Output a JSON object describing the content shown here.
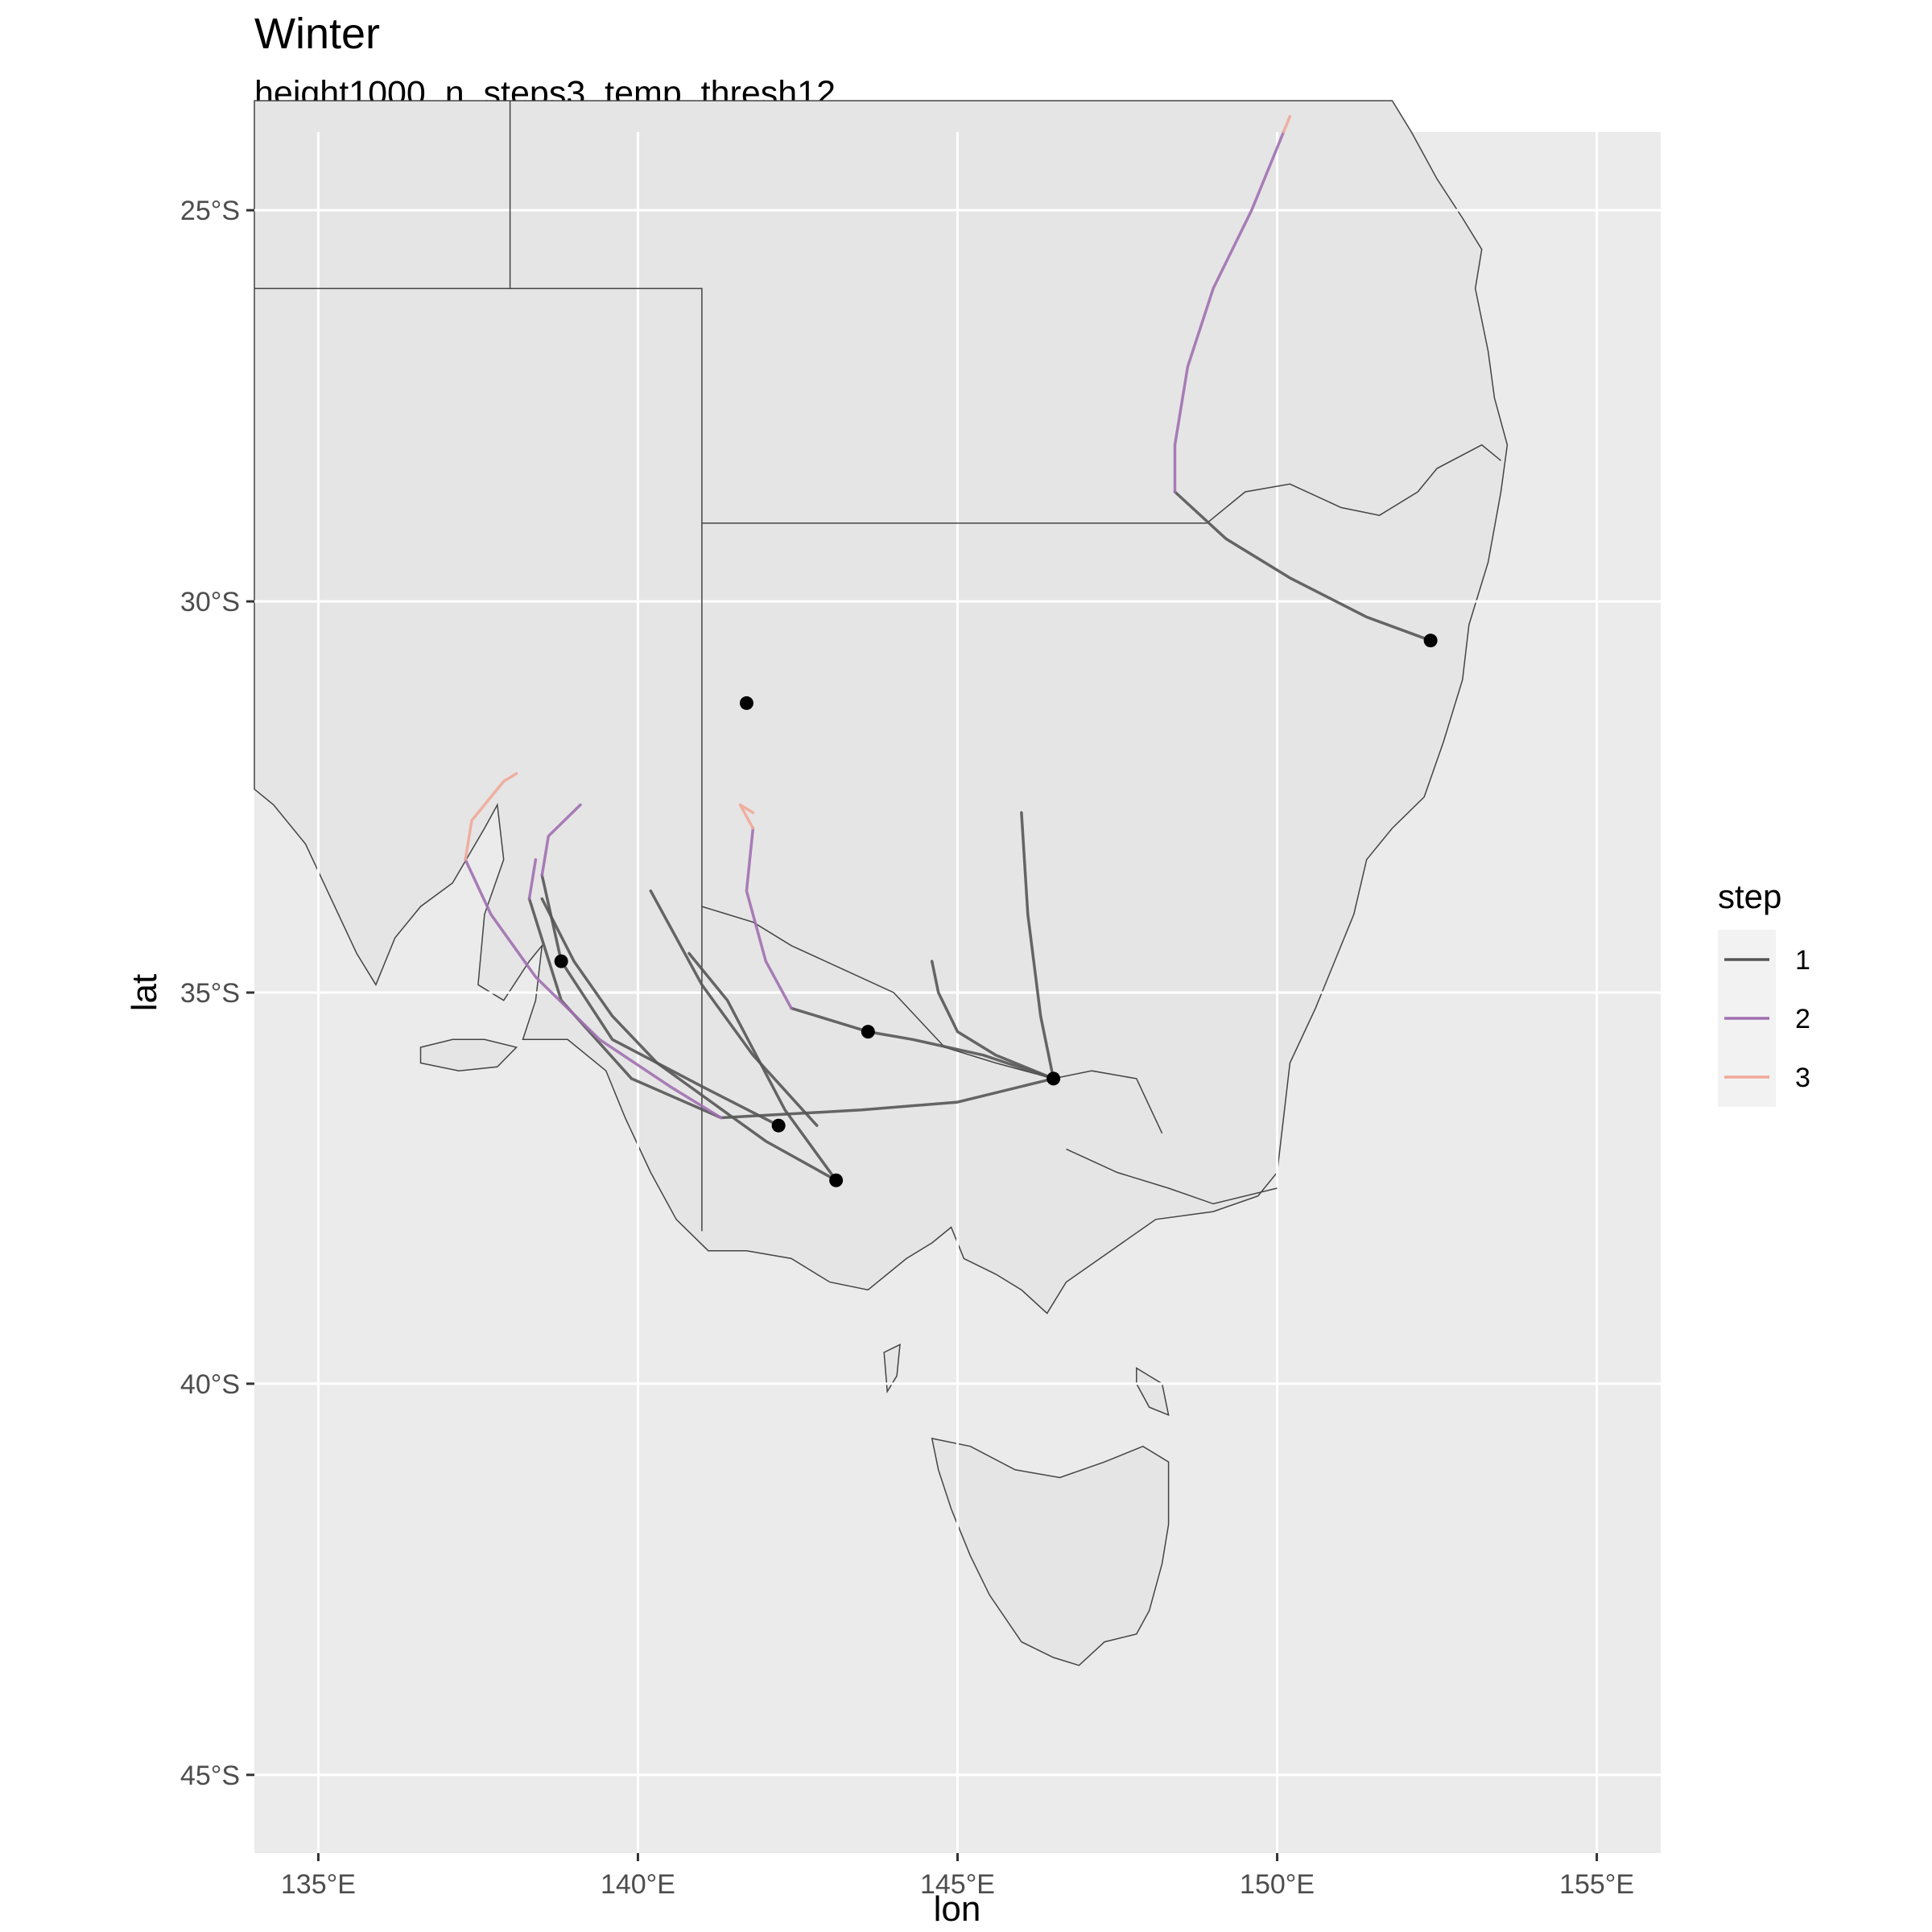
{
  "title": "Winter",
  "subtitle": "height1000_n_steps3_temp_thresh12",
  "axes": {
    "x_title": "lon",
    "y_title": "lat",
    "x_ticks": [
      {
        "value": 135,
        "label": "135°E"
      },
      {
        "value": 140,
        "label": "140°E"
      },
      {
        "value": 145,
        "label": "145°E"
      },
      {
        "value": 150,
        "label": "150°E"
      },
      {
        "value": 155,
        "label": "155°E"
      }
    ],
    "y_ticks": [
      {
        "value": -25,
        "label": "25°S"
      },
      {
        "value": -30,
        "label": "30°S"
      },
      {
        "value": -35,
        "label": "35°S"
      },
      {
        "value": -40,
        "label": "40°S"
      },
      {
        "value": -45,
        "label": "45°S"
      }
    ],
    "xlim": [
      134,
      156
    ],
    "ylim": [
      -46,
      -24
    ]
  },
  "legend": {
    "title": "step",
    "placement": "right",
    "items": [
      {
        "label": "1",
        "color": "#555555"
      },
      {
        "label": "2",
        "color": "#a070b0"
      },
      {
        "label": "3",
        "color": "#f0a898"
      }
    ]
  },
  "colors": {
    "panel": "#ebebeb",
    "land": "#e5e5e5",
    "grid": "#ffffff",
    "boundary": "#444444",
    "point": "#000000"
  },
  "chart_data": {
    "type": "map",
    "title": "Winter",
    "subtitle": "height1000_n_steps3_temp_thresh12",
    "xlabel": "lon",
    "ylabel": "lat",
    "xlim": [
      134,
      156
    ],
    "ylim": [
      -46,
      -24
    ],
    "grid": true,
    "legend": "right",
    "points": [
      {
        "lon": 152.4,
        "lat": -30.5
      },
      {
        "lon": 141.7,
        "lat": -31.3
      },
      {
        "lon": 138.8,
        "lat": -34.6
      },
      {
        "lon": 143.6,
        "lat": -35.5
      },
      {
        "lon": 146.5,
        "lat": -36.1
      },
      {
        "lon": 142.2,
        "lat": -36.7
      },
      {
        "lon": 143.1,
        "lat": -37.4
      }
    ],
    "trajectories": [
      {
        "step": 1,
        "path": [
          [
            152.4,
            -30.5
          ],
          [
            151.4,
            -30.2
          ],
          [
            150.2,
            -29.7
          ],
          [
            149.2,
            -29.2
          ],
          [
            148.4,
            -28.6
          ]
        ]
      },
      {
        "step": 2,
        "path": [
          [
            148.4,
            -28.6
          ],
          [
            148.4,
            -28.0
          ],
          [
            148.6,
            -27.0
          ],
          [
            149.0,
            -26.0
          ],
          [
            149.6,
            -25.0
          ],
          [
            150.1,
            -24.0
          ]
        ]
      },
      {
        "step": 3,
        "path": [
          [
            150.1,
            -24.0
          ],
          [
            150.2,
            -23.8
          ]
        ]
      },
      {
        "step": 1,
        "path": [
          [
            146.5,
            -36.1
          ],
          [
            146.3,
            -35.3
          ],
          [
            146.1,
            -34.0
          ],
          [
            146.0,
            -32.7
          ]
        ]
      },
      {
        "step": 1,
        "path": [
          [
            146.5,
            -36.1
          ],
          [
            145.6,
            -35.8
          ],
          [
            145.0,
            -35.5
          ],
          [
            144.7,
            -35.0
          ],
          [
            144.6,
            -34.6
          ]
        ]
      },
      {
        "step": 1,
        "path": [
          [
            146.5,
            -36.1
          ],
          [
            145.4,
            -35.8
          ],
          [
            144.3,
            -35.6
          ],
          [
            143.6,
            -35.5
          ],
          [
            142.4,
            -35.2
          ]
        ]
      },
      {
        "step": 2,
        "path": [
          [
            142.4,
            -35.2
          ],
          [
            142.0,
            -34.6
          ],
          [
            141.7,
            -33.7
          ],
          [
            141.8,
            -32.9
          ]
        ]
      },
      {
        "step": 3,
        "path": [
          [
            141.8,
            -32.9
          ],
          [
            141.6,
            -32.6
          ],
          [
            141.8,
            -32.7
          ]
        ]
      },
      {
        "step": 1,
        "path": [
          [
            146.5,
            -36.1
          ],
          [
            145.0,
            -36.4
          ],
          [
            143.5,
            -36.5
          ],
          [
            141.3,
            -36.6
          ],
          [
            139.9,
            -36.1
          ],
          [
            138.8,
            -35.1
          ],
          [
            138.3,
            -33.8
          ]
        ]
      },
      {
        "step": 2,
        "path": [
          [
            138.3,
            -33.8
          ],
          [
            138.4,
            -33.3
          ]
        ]
      },
      {
        "step": 1,
        "path": [
          [
            142.2,
            -36.7
          ],
          [
            141.0,
            -36.2
          ],
          [
            139.6,
            -35.6
          ],
          [
            138.8,
            -34.6
          ],
          [
            138.5,
            -33.5
          ]
        ]
      },
      {
        "step": 2,
        "path": [
          [
            138.5,
            -33.5
          ],
          [
            138.6,
            -33.0
          ],
          [
            139.1,
            -32.6
          ]
        ]
      },
      {
        "step": 1,
        "path": [
          [
            143.1,
            -37.4
          ],
          [
            142.3,
            -36.5
          ],
          [
            141.4,
            -35.1
          ],
          [
            140.8,
            -34.5
          ]
        ]
      },
      {
        "step": 1,
        "path": [
          [
            143.1,
            -37.4
          ],
          [
            142.0,
            -36.9
          ],
          [
            140.3,
            -35.9
          ],
          [
            139.6,
            -35.3
          ],
          [
            139.0,
            -34.6
          ],
          [
            138.5,
            -33.8
          ]
        ]
      },
      {
        "step": 1,
        "path": [
          [
            142.8,
            -36.7
          ],
          [
            141.8,
            -35.8
          ],
          [
            141.0,
            -34.9
          ],
          [
            140.2,
            -33.7
          ]
        ]
      },
      {
        "step": 2,
        "path": [
          [
            141.3,
            -36.6
          ],
          [
            140.5,
            -36.2
          ],
          [
            139.4,
            -35.6
          ],
          [
            138.4,
            -34.8
          ],
          [
            137.7,
            -34.0
          ],
          [
            137.3,
            -33.3
          ]
        ]
      },
      {
        "step": 3,
        "path": [
          [
            137.3,
            -33.3
          ],
          [
            137.4,
            -32.8
          ],
          [
            137.9,
            -32.3
          ],
          [
            138.1,
            -32.2
          ]
        ]
      }
    ]
  }
}
